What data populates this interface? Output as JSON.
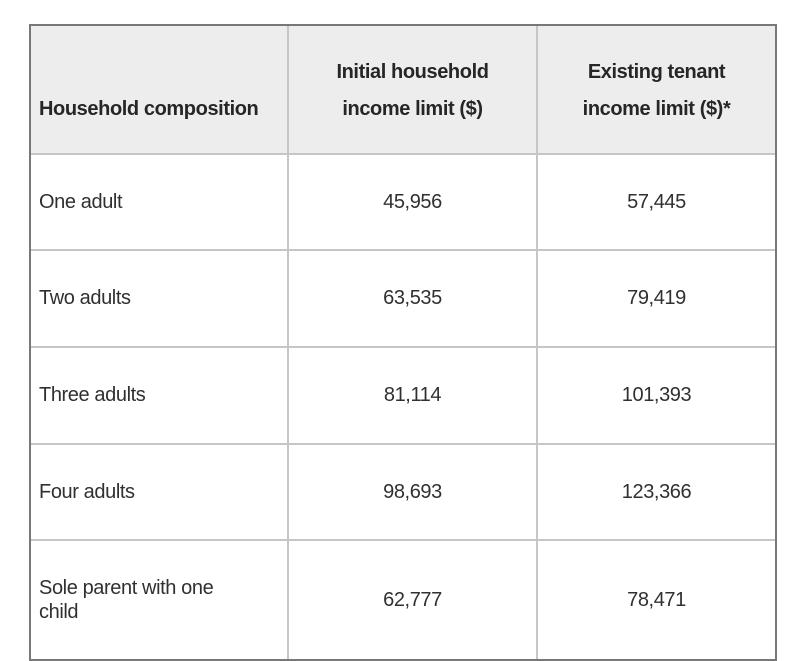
{
  "table": {
    "header": {
      "composition": "Household composition",
      "initial_line1": "Initial household",
      "initial_line2": "income limit ($)",
      "existing_line1": "Existing tenant",
      "existing_line2": "income limit ($)*"
    },
    "rows": [
      {
        "composition": "One adult",
        "initial": "45,956",
        "existing": "57,445"
      },
      {
        "composition": "Two adults",
        "initial": "63,535",
        "existing": "79,419"
      },
      {
        "composition": "Three adults",
        "initial": "81,114",
        "existing": "101,393"
      },
      {
        "composition": "Four adults",
        "initial": "98,693",
        "existing": "123,366"
      },
      {
        "composition_line1": "Sole parent with one",
        "composition_line2": "child",
        "initial": "62,777",
        "existing": "78,471"
      }
    ]
  },
  "colors": {
    "page_background": "#ffffff",
    "header_background": "#ededed",
    "outer_border": "#787878",
    "grid_line": "#c6c6c6",
    "header_text": "#262626",
    "body_text": "#303030"
  }
}
